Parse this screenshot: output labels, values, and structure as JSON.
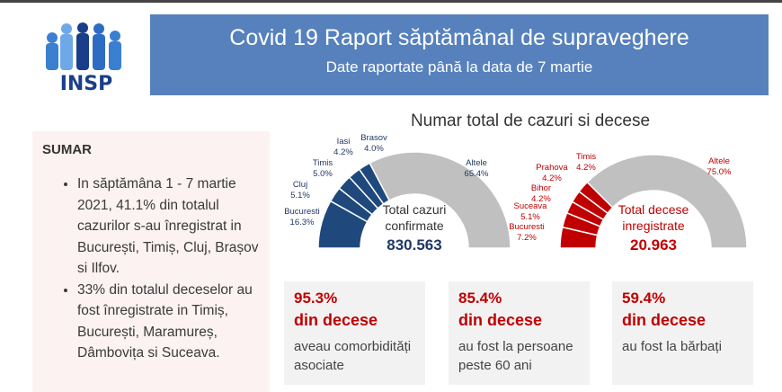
{
  "logo": {
    "text": "INSP"
  },
  "banner": {
    "title": "Covid 19 Raport săptămânal de supraveghere",
    "subtitle": "Date raportate până la data de 7 martie"
  },
  "sumar": {
    "heading": "SUMAR",
    "items": [
      "In săptămâna 1 - 7 martie 2021, 41.1% din totalul cazurilor s-au înregistrat in București, Timiș, Cluj, Brașov si Ilfov.",
      "33% din totalul deceselor au fost înregistrate in Timiș, București, Maramureș, Dâmbovița si Suceava."
    ]
  },
  "chart_title": "Numar total de cazuri si decese",
  "colors": {
    "cases": "#1f497d",
    "deaths": "#c00000",
    "other": "#c0c0c0",
    "banner": "#5681bd"
  },
  "chart_data": [
    {
      "type": "pie",
      "subtype": "half-donut",
      "center_label": "Total cazuri confirmate",
      "center_value": "830.563",
      "categories": [
        "Bucuresti",
        "Cluj",
        "Timis",
        "Iasi",
        "Brasov",
        "Altele"
      ],
      "labels": [
        "16.3%",
        "5.1%",
        "5.0%",
        "4.2%",
        "4.0%",
        "65.4%"
      ],
      "values": [
        16.3,
        5.1,
        5.0,
        4.2,
        4.0,
        65.4
      ]
    },
    {
      "type": "pie",
      "subtype": "half-donut",
      "center_label": "Total decese inregistrate",
      "center_value": "20.963",
      "categories": [
        "Bucuresti",
        "Suceava",
        "Bihor",
        "Prahova",
        "Timis",
        "Altele"
      ],
      "labels": [
        "7.2%",
        "5.1%",
        "4.2%",
        "4.2%",
        "4.2%",
        "75.0%"
      ],
      "values": [
        7.2,
        5.1,
        4.2,
        4.2,
        4.2,
        75.0
      ]
    }
  ],
  "cards": [
    {
      "pct": "95.3%",
      "sub": "din decese",
      "text": "aveau comorbidități asociate"
    },
    {
      "pct": "85.4%",
      "sub": "din decese",
      "text": "au fost la persoane peste 60 ani"
    },
    {
      "pct": "59.4%",
      "sub": "din decese",
      "text": "au fost la bărbați"
    }
  ]
}
